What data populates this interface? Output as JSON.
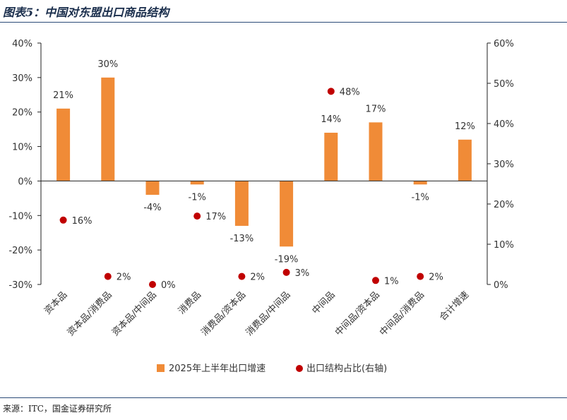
{
  "header": {
    "title": "图表5：中国对东盟出口商品结构"
  },
  "footer": {
    "source": "来源：ITC，国金证券研究所"
  },
  "chart_data": {
    "type": "bar",
    "categories": [
      "资本品",
      "资本品/消费品",
      "资本品/中间品",
      "消费品",
      "消费品/资本品",
      "消费品/中间品",
      "中间品",
      "中间品/资本品",
      "中间品/消费品",
      "合计增速"
    ],
    "series": [
      {
        "name": "2025年上半年出口增速",
        "type": "bar",
        "axis": "left",
        "color": "#f08b37",
        "values": [
          21,
          30,
          -4,
          -1,
          -13,
          -19,
          14,
          17,
          -1,
          12
        ],
        "labels": [
          "21%",
          "30%",
          "-4%",
          "-1%",
          "-13%",
          "-19%",
          "14%",
          "17%",
          "-1%",
          "12%"
        ]
      },
      {
        "name": "出口结构占比(右轴)",
        "type": "scatter",
        "axis": "right",
        "color": "#c00000",
        "values": [
          16,
          2,
          0,
          17,
          2,
          3,
          48,
          1,
          2,
          null
        ],
        "labels": [
          "16%",
          "2%",
          "0%",
          "17%",
          "2%",
          "3%",
          "48%",
          "1%",
          "2%",
          null
        ]
      }
    ],
    "yleft": {
      "min": -30,
      "max": 40,
      "step": 10,
      "tick_labels": [
        "-30%",
        "-20%",
        "-10%",
        "0%",
        "10%",
        "20%",
        "30%",
        "40%"
      ]
    },
    "yright": {
      "min": 0,
      "max": 60,
      "step": 10,
      "tick_labels": [
        "0%",
        "10%",
        "20%",
        "30%",
        "40%",
        "50%",
        "60%"
      ]
    },
    "legend": {
      "position": "bottom"
    }
  }
}
